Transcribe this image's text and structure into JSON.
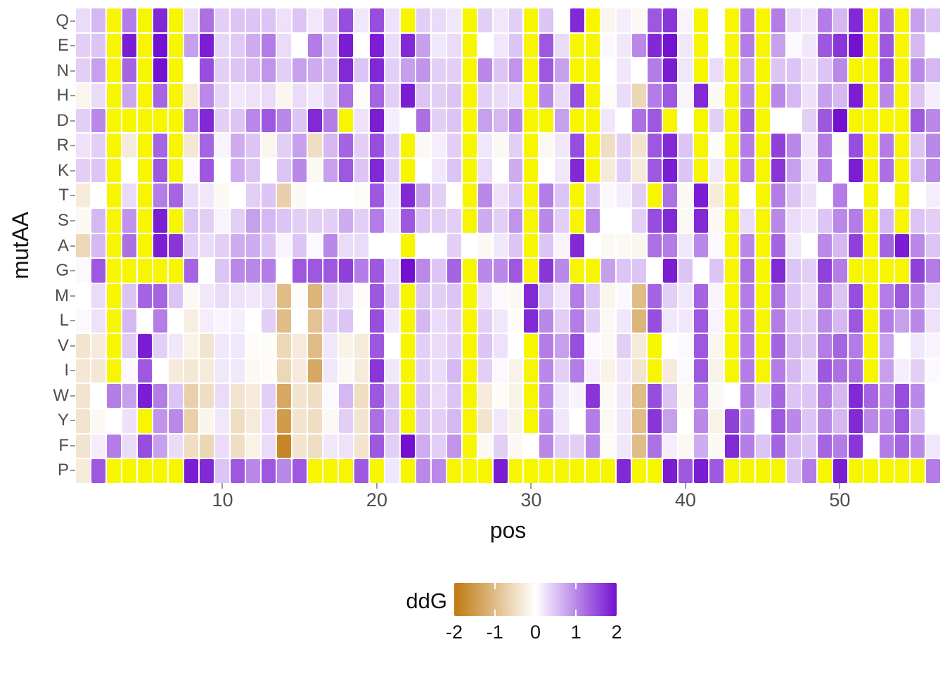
{
  "chart_data": {
    "type": "heatmap",
    "title": "",
    "xlabel": "pos",
    "ylabel": "mutAA",
    "x_range": [
      1,
      56
    ],
    "x_tick_labels": [
      10,
      20,
      30,
      40,
      50
    ],
    "grid": "off",
    "legend": {
      "title": "ddG",
      "position": "bottom",
      "tick_labels": [
        "-2",
        "-1",
        "0",
        "1",
        "2"
      ],
      "range": [
        -2,
        2
      ],
      "notch_fractions": [
        0.25,
        0.5,
        0.75
      ]
    },
    "colorscale": {
      "low": "#C0790F",
      "mid": "#FFFFFF",
      "high": "#7411D1",
      "out_of_range": "#F7F500",
      "note": "cells coded Y are rendered yellow (value outside the -2..2 fill scale)"
    },
    "row_labels": [
      "Q",
      "E",
      "N",
      "H",
      "D",
      "R",
      "K",
      "T",
      "S",
      "A",
      "G",
      "M",
      "L",
      "V",
      "I",
      "W",
      "Y",
      "F",
      "P"
    ],
    "values": [
      [
        0.3,
        0.6,
        "Y",
        1.1,
        "Y",
        1.8,
        "Y",
        0.3,
        1.2,
        0.4,
        0.5,
        0.5,
        0.5,
        0.25,
        0.5,
        0.2,
        0.5,
        1.5,
        0.2,
        1.5,
        0.25,
        "Y",
        0.4,
        0.3,
        0.2,
        "Y",
        0.4,
        0.2,
        0.4,
        "Y",
        0.5,
        0,
        1.8,
        "Y",
        -0.15,
        0.15,
        -0.1,
        1.4,
        1.7,
        0.1,
        "Y",
        0,
        "Y",
        1.1,
        "Y",
        1.1,
        0.3,
        0.2,
        1.1,
        0.6,
        1.8,
        "Y",
        1.2,
        "Y",
        0.8,
        0.5
      ],
      [
        0.4,
        0.5,
        "Y",
        1.9,
        "Y",
        2,
        "Y",
        0.8,
        1.9,
        0.35,
        0.45,
        0.7,
        1.1,
        0.3,
        0,
        1.1,
        0.5,
        1.9,
        0,
        1.9,
        0.3,
        1.8,
        0.8,
        0.2,
        0.3,
        "Y",
        0,
        0.2,
        0.5,
        "Y",
        1.4,
        0.3,
        "Y",
        "Y",
        0.05,
        0.2,
        1.0,
        1.8,
        2,
        0.2,
        "Y",
        0,
        "Y",
        1.1,
        "Y",
        0.8,
        0.05,
        0.2,
        1.4,
        1.7,
        2,
        "Y",
        1.4,
        "Y",
        0.6,
        0
      ],
      [
        0.4,
        0.8,
        "Y",
        1.3,
        "Y",
        2,
        "Y",
        0,
        1.5,
        0.4,
        0.5,
        0.6,
        0.9,
        0.4,
        0.8,
        0.7,
        0.6,
        1.8,
        0.5,
        1.8,
        0.4,
        0.8,
        0.9,
        0.4,
        0.4,
        "Y",
        1.0,
        0.5,
        0.9,
        "Y",
        1.4,
        0.8,
        "Y",
        "Y",
        0,
        0.2,
        0,
        1.1,
        1.9,
        0.2,
        "Y",
        0.3,
        "Y",
        0.8,
        "Y",
        0.5,
        0.5,
        0.25,
        0.5,
        1.0,
        "Y",
        "Y",
        1.4,
        "Y",
        1.0,
        0.6
      ],
      [
        -0.15,
        0.3,
        "Y",
        0.75,
        "Y",
        1.3,
        "Y",
        -0.3,
        1.0,
        0.35,
        0.2,
        0.25,
        0.3,
        -0.15,
        0.3,
        0.2,
        0.4,
        1.2,
        -0.05,
        1.3,
        0.4,
        1.9,
        0.5,
        0.4,
        0.5,
        "Y",
        0.4,
        0.3,
        0.3,
        "Y",
        1.0,
        0.3,
        1.5,
        "Y",
        -0.05,
        0.3,
        -0.6,
        1.1,
        1.4,
        0.1,
        1.8,
        -0.1,
        "Y",
        1.0,
        "Y",
        1.0,
        0.6,
        0.25,
        0.8,
        0.6,
        1.9,
        "Y",
        1.0,
        "Y",
        0.5,
        0.15
      ],
      [
        0.4,
        1.0,
        "Y",
        "Y",
        "Y",
        "Y",
        "Y",
        1.0,
        1.8,
        0.4,
        0.5,
        1.0,
        1.4,
        1.0,
        0.5,
        1.8,
        1.1,
        "Y",
        0.25,
        1.9,
        0.15,
        0,
        1.2,
        0.4,
        0.5,
        "Y",
        0.8,
        0.6,
        1.0,
        "Y",
        "Y",
        0.8,
        "Y",
        "Y",
        0.2,
        0,
        1.2,
        1.4,
        "Y",
        0,
        "Y",
        0.4,
        "Y",
        1.3,
        "Y",
        0,
        0,
        0.4,
        1.4,
        2,
        "Y",
        "Y",
        "Y",
        "Y",
        1.4,
        1.0
      ],
      [
        0.25,
        0.4,
        "Y",
        -0.3,
        "Y",
        1.3,
        "Y",
        -0.35,
        1.3,
        0.1,
        0.7,
        0.5,
        -0.15,
        0.4,
        0.8,
        -0.5,
        0.6,
        1.3,
        0.4,
        1.5,
        0.4,
        "Y",
        -0.1,
        0.15,
        0.4,
        "Y",
        0.2,
        -0.1,
        0.4,
        "Y",
        -0.1,
        0.2,
        1.5,
        "Y",
        -0.5,
        0.4,
        -0.4,
        1.4,
        1.8,
        0.5,
        "Y",
        -0.05,
        "Y",
        1.1,
        "Y",
        1.6,
        1.0,
        0.2,
        1.1,
        -0.05,
        1.5,
        "Y",
        1.1,
        "Y",
        0.5,
        1.0
      ],
      [
        0.4,
        0.5,
        "Y",
        0,
        "Y",
        1.4,
        "Y",
        0.05,
        1.4,
        0,
        0.7,
        0.5,
        0,
        0.5,
        1.0,
        -0.1,
        0.8,
        1.4,
        0.5,
        1.8,
        0.4,
        "Y",
        0,
        0.2,
        0.5,
        "Y",
        0.3,
        0,
        0.7,
        "Y",
        0,
        0.2,
        1.8,
        "Y",
        -0.3,
        0.4,
        -0.3,
        1.4,
        1.9,
        0.5,
        "Y",
        0.2,
        "Y",
        1.1,
        "Y",
        1.7,
        0.8,
        0.2,
        1.1,
        0,
        1.9,
        "Y",
        1.2,
        "Y",
        0.6,
        1.0
      ],
      [
        -0.3,
        0,
        "Y",
        0.3,
        "Y",
        1.1,
        1.3,
        0.3,
        0.2,
        -0.1,
        0,
        0.4,
        0.5,
        -0.7,
        -0.1,
        0,
        0,
        0,
        -0.05,
        1.4,
        0.2,
        1.8,
        0.8,
        0.4,
        0,
        "Y",
        1.0,
        0.25,
        0.5,
        "Y",
        1.1,
        0.5,
        "Y",
        0.5,
        0.05,
        0.15,
        0.4,
        "Y",
        1.2,
        -0.1,
        1.9,
        -0.3,
        "Y",
        0,
        "Y",
        1.1,
        0.5,
        0.25,
        0,
        1.1,
        0,
        "Y",
        0,
        "Y",
        0,
        0.15
      ],
      [
        -0.1,
        0.6,
        "Y",
        0.9,
        "Y",
        1.9,
        "Y",
        0.5,
        0.4,
        0.1,
        0.4,
        0.8,
        0.6,
        0.5,
        0.4,
        0.4,
        0.4,
        0.7,
        0.4,
        1.1,
        0.2,
        1.4,
        0.5,
        0.4,
        0.4,
        "Y",
        0.7,
        0.4,
        0.9,
        "Y",
        1.0,
        0.4,
        "Y",
        1.0,
        0,
        0,
        0.4,
        1.5,
        1.8,
        -0.1,
        1.8,
        -0.1,
        "Y",
        0.3,
        "Y",
        1.0,
        0.3,
        0.2,
        0.5,
        1.0,
        1.1,
        "Y",
        0.6,
        "Y",
        0.5,
        0.4
      ],
      [
        -0.6,
        0.6,
        "Y",
        1.2,
        "Y",
        1.9,
        1.7,
        0.4,
        0.3,
        0.4,
        0.7,
        0.7,
        0.5,
        0.1,
        0.5,
        0.05,
        1.0,
        0.3,
        0.3,
        0,
        0,
        "Y",
        0,
        0,
        0.4,
        0,
        -0.1,
        0.2,
        0.5,
        "Y",
        0.5,
        0.1,
        1.8,
        0,
        -0.1,
        -0.1,
        -0.15,
        1.2,
        1.1,
        0.2,
        1.0,
        0.05,
        "Y",
        1.0,
        "Y",
        1.3,
        0.2,
        0,
        1.0,
        0.6,
        1.6,
        "Y",
        1.3,
        1.9,
        1.0,
        0.5
      ],
      [
        0.05,
        1.4,
        "Y",
        "Y",
        "Y",
        "Y",
        "Y",
        1.3,
        0,
        0.5,
        1.0,
        1.0,
        1.1,
        0,
        1.4,
        1.4,
        1.4,
        1.6,
        1.1,
        1.4,
        0.3,
        2,
        1.0,
        0.5,
        1.3,
        "Y",
        1.0,
        1.0,
        1.4,
        "Y",
        1.7,
        1.0,
        "Y",
        "Y",
        0.8,
        0.5,
        0.5,
        0,
        1.9,
        0.5,
        0,
        0.5,
        "Y",
        1.2,
        "Y",
        1.8,
        0.5,
        0.4,
        1.6,
        1.1,
        "Y",
        "Y",
        "Y",
        "Y",
        1.6,
        1.1
      ],
      [
        0,
        0.3,
        "Y",
        0.5,
        1.3,
        1.3,
        0.5,
        -0.1,
        0.2,
        0.3,
        0.25,
        0.2,
        0.3,
        -1.0,
        -0.05,
        -1.1,
        0.4,
        0.3,
        -0.05,
        1.4,
        0.4,
        "Y",
        0.5,
        0.4,
        0.5,
        "Y",
        0.25,
        0.05,
        -0.1,
        1.8,
        0.5,
        0.2,
        1.1,
        0.5,
        -0.15,
        0.05,
        -1.0,
        1.3,
        0.4,
        0.2,
        1.3,
        0.1,
        "Y",
        1.1,
        "Y",
        1.2,
        0.5,
        0.3,
        1.2,
        0.5,
        1.5,
        "Y",
        1.1,
        1.4,
        1.0,
        0.3
      ],
      [
        0.05,
        0.25,
        "Y",
        0.6,
        0,
        1.1,
        0,
        -0.25,
        0.15,
        0.1,
        0.15,
        0,
        0.4,
        -1.0,
        0,
        -0.9,
        0.4,
        0.5,
        0,
        1.5,
        0.2,
        "Y",
        0.6,
        0.3,
        0.4,
        "Y",
        0.4,
        0.2,
        -0.05,
        1.8,
        1.0,
        0.4,
        1.1,
        0.4,
        -0.1,
        0.2,
        -1.1,
        1.5,
        0.2,
        0.2,
        1.4,
        0.1,
        "Y",
        1.1,
        "Y",
        1.1,
        0.5,
        0.4,
        1.0,
        0.6,
        1.4,
        "Y",
        1.1,
        0.8,
        1.0,
        0.25
      ],
      [
        -0.4,
        -0.3,
        "Y",
        0.45,
        1.9,
        0.4,
        0.2,
        -0.2,
        -0.4,
        0.2,
        0.2,
        -0.05,
        -0.05,
        -0.6,
        -0.3,
        -1.0,
        0.2,
        -0.2,
        -0.3,
        1.4,
        0,
        "Y",
        0.4,
        0.3,
        0.4,
        "Y",
        0.5,
        0.25,
        0,
        "Y",
        1.1,
        0.8,
        1.5,
        0.05,
        -0.1,
        0.4,
        -0.3,
        "Y",
        0,
        0.05,
        1.4,
        -0.15,
        "Y",
        1.1,
        "Y",
        1.3,
        0.6,
        0.5,
        1.1,
        1.3,
        1.1,
        "Y",
        0.8,
        0,
        0.2,
        0.1
      ],
      [
        -0.35,
        -0.35,
        "Y",
        0.05,
        1.4,
        0,
        -0.3,
        -0.35,
        -0.3,
        0.2,
        0.2,
        -0.1,
        -0.05,
        -0.6,
        -0.3,
        -1.3,
        0.2,
        -0.1,
        -0.3,
        1.7,
        0.2,
        "Y",
        0.4,
        0.3,
        0.6,
        "Y",
        0.4,
        0.05,
        -0.2,
        "Y",
        1.0,
        0.4,
        1.1,
        0.15,
        -0.2,
        0.2,
        -0.4,
        "Y",
        -0.3,
        0.05,
        1.4,
        -0.2,
        "Y",
        1.1,
        "Y",
        1.1,
        0.6,
        0.3,
        1.4,
        1.2,
        1.2,
        "Y",
        0.8,
        0.15,
        0.4,
        0.05
      ],
      [
        -0.4,
        0,
        1.1,
        0.8,
        1.9,
        1.1,
        0.5,
        -0.7,
        -0.5,
        0.3,
        -0.4,
        -0.3,
        0.4,
        -1.3,
        -0.4,
        -0.5,
        0.05,
        0.6,
        -0.5,
        1.4,
        0.5,
        "Y",
        0.5,
        0.3,
        0.5,
        "Y",
        -0.3,
        -0.05,
        -0.2,
        "Y",
        1.0,
        0.2,
        0.1,
        1.7,
        -0.1,
        0.2,
        -1.0,
        1.5,
        0.5,
        -0.1,
        1.1,
        -0.1,
        0,
        1.1,
        0.4,
        1.3,
        0.5,
        0.5,
        1.1,
        0.6,
        1.8,
        1.3,
        1.0,
        1.5,
        1.0,
        0
      ],
      [
        -0.4,
        -0.1,
        0,
        0.25,
        "Y",
        0.9,
        1.0,
        -0.7,
        -0.15,
        0.2,
        -0.5,
        -0.3,
        0.3,
        -1.5,
        -0.4,
        -0.5,
        -0.1,
        0.4,
        -0.4,
        1.2,
        0.5,
        "Y",
        0.5,
        0.4,
        0.6,
        "Y",
        -0.4,
        0.2,
        -0.2,
        "Y",
        1.0,
        0.2,
        0,
        1.1,
        -0.1,
        0.2,
        -1.0,
        1.7,
        0.8,
        0,
        1.0,
        -0.2,
        1.6,
        1.0,
        0,
        1.4,
        1.0,
        0.5,
        1.0,
        0.6,
        1.8,
        1.0,
        1.0,
        1.4,
        0.6,
        0
      ],
      [
        -0.4,
        0.15,
        1.1,
        0.3,
        1.5,
        0.8,
        0.3,
        -0.5,
        -0.6,
        0.3,
        -0.5,
        -0.2,
        0.3,
        -1.8,
        -0.4,
        -0.5,
        0.2,
        0.25,
        -0.4,
        1.4,
        0.4,
        2,
        0.7,
        0.4,
        0.9,
        "Y",
        -0.1,
        0.4,
        -0.1,
        0,
        1.0,
        0.4,
        0.4,
        1.0,
        -0.05,
        0.2,
        -1.0,
        1.2,
        0.15,
        -0.1,
        0.7,
        -0.1,
        1.8,
        1.1,
        0.5,
        1.3,
        0.6,
        0.5,
        1.3,
        1.1,
        1.7,
        0,
        1.1,
        1.3,
        1.0,
        0.2
      ],
      [
        -0.3,
        1.4,
        "Y",
        "Y",
        "Y",
        "Y",
        "Y",
        1.9,
        1.8,
        0.5,
        1.4,
        1.0,
        1.4,
        1.0,
        1.4,
        "Y",
        "Y",
        "Y",
        1.4,
        "Y",
        0.2,
        "Y",
        1.0,
        1.0,
        "Y",
        "Y",
        "Y",
        1.9,
        "Y",
        "Y",
        "Y",
        "Y",
        "Y",
        "Y",
        "Y",
        1.8,
        "Y",
        "Y",
        1.9,
        1.4,
        1.9,
        1.4,
        "Y",
        "Y",
        "Y",
        "Y",
        0.5,
        1.1,
        "Y",
        1.9,
        "Y",
        "Y",
        "Y",
        "Y",
        "Y",
        1.1
      ]
    ]
  }
}
